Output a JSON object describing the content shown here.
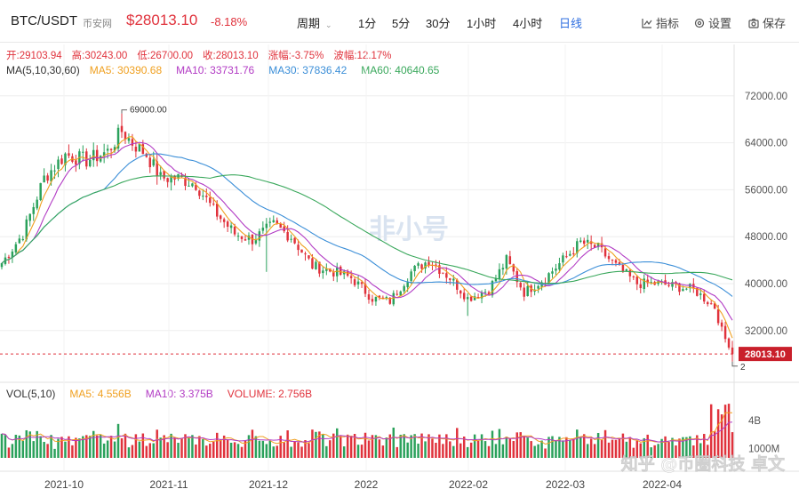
{
  "header": {
    "symbol": "BTC/USDT",
    "source": "币安网",
    "price": "$28013.10",
    "change": "-8.18%",
    "period_label": "周期",
    "timeframes": [
      "1分",
      "5分",
      "30分",
      "1小时",
      "4小时",
      "日线"
    ],
    "active_timeframe": "日线",
    "tools": {
      "indicator": "指标",
      "settings": "设置",
      "save": "保存"
    }
  },
  "ohlc_info": {
    "open": "开:29103.94",
    "high": "高:30243.00",
    "low": "低:26700.00",
    "close": "收:28013.10",
    "change": "涨幅:-3.75%",
    "amplitude": "波幅:12.17%"
  },
  "ma_info": {
    "label": "MA(5,10,30,60)",
    "ma5": "MA5: 30390.68",
    "ma10": "MA10: 33731.76",
    "ma30": "MA30: 37836.42",
    "ma60": "MA60: 40640.65"
  },
  "vol_info": {
    "label": "VOL(5,10)",
    "ma5": "MA5: 4.556B",
    "ma10": "MA10: 3.375B",
    "volume": "VOLUME: 2.756B"
  },
  "colors": {
    "up": "#2aa15b",
    "down": "#e0323c",
    "ma5": "#f0a020",
    "ma10": "#b23bc4",
    "ma30": "#3c8fd8",
    "ma60": "#3aa85c",
    "accent": "#2f6fe0"
  },
  "watermarks": {
    "center": "非小号",
    "bottom": "知乎 @币圈科技 卓文"
  },
  "chart_data": {
    "type": "candlestick",
    "x_tick_labels": [
      "2021-10",
      "2021-11",
      "2021-12",
      "2022",
      "2022-02",
      "2022-03",
      "2022-04"
    ],
    "y_tick_labels": [
      "72000.00",
      "64000.00",
      "56000.00",
      "48000.00",
      "40000.00",
      "32000.00"
    ],
    "ylim": [
      25000,
      75000
    ],
    "last_price_label": "28013.10",
    "max_label": "69000.00",
    "min_marker_label": "2",
    "volume_axis_labels": [
      "4B",
      "1000M"
    ],
    "vol_ylim": [
      0,
      6
    ],
    "close_anchors": [
      [
        0,
        43500
      ],
      [
        6,
        48500
      ],
      [
        12,
        58000
      ],
      [
        18,
        62000
      ],
      [
        24,
        61000
      ],
      [
        30,
        62500
      ],
      [
        34,
        66000
      ],
      [
        37,
        64000
      ],
      [
        41,
        62000
      ],
      [
        45,
        58000
      ],
      [
        50,
        58000
      ],
      [
        55,
        57000
      ],
      [
        60,
        52500
      ],
      [
        66,
        48500
      ],
      [
        71,
        47500
      ],
      [
        77,
        50000
      ],
      [
        82,
        48000
      ],
      [
        88,
        43000
      ],
      [
        94,
        42000
      ],
      [
        99,
        41000
      ],
      [
        105,
        37500
      ],
      [
        110,
        37000
      ],
      [
        116,
        42000
      ],
      [
        121,
        44000
      ],
      [
        127,
        41000
      ],
      [
        132,
        37500
      ],
      [
        138,
        39000
      ],
      [
        143,
        44000
      ],
      [
        148,
        38500
      ],
      [
        154,
        41000
      ],
      [
        159,
        44000
      ],
      [
        164,
        47000
      ],
      [
        169,
        46000
      ],
      [
        174,
        43000
      ],
      [
        180,
        40000
      ],
      [
        186,
        40000
      ],
      [
        191,
        39500
      ],
      [
        196,
        39000
      ],
      [
        202,
        36000
      ],
      [
        204,
        32000
      ],
      [
        206,
        29103.94
      ],
      [
        207,
        28013.1
      ]
    ],
    "last_candle": {
      "open": 29103.94,
      "high": 30243.0,
      "low": 26700.0,
      "close": 28013.1
    }
  }
}
